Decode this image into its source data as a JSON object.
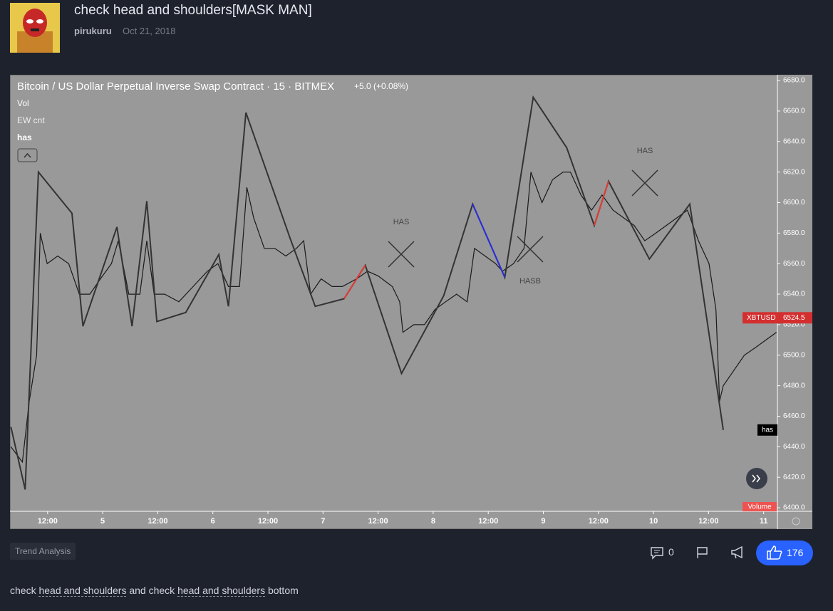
{
  "header": {
    "title": "check head and shoulders[MASK MAN]",
    "author": "pirukuru",
    "date": "Oct 21, 2018"
  },
  "chart_data": {
    "type": "line",
    "title": "Bitcoin / US Dollar Perpetual Inverse Swap Contract · 15 · BITMEX",
    "change": "+5.0 (+0.08%)",
    "indicators": [
      "Vol",
      "EW cnt",
      "has"
    ],
    "xlim": [
      3.8,
      171
    ],
    "ylim": [
      6397.7,
      6683.3
    ],
    "xticks": [
      {
        "value": 12,
        "label": "12:00"
      },
      {
        "value": 24,
        "label": "5"
      },
      {
        "value": 36,
        "label": "12:00"
      },
      {
        "value": 48,
        "label": "6"
      },
      {
        "value": 60,
        "label": "12:00"
      },
      {
        "value": 72,
        "label": "7"
      },
      {
        "value": 84,
        "label": "12:00"
      },
      {
        "value": 96,
        "label": "8"
      },
      {
        "value": 108,
        "label": "12:00"
      },
      {
        "value": 120,
        "label": "9"
      },
      {
        "value": 132,
        "label": "12:00"
      },
      {
        "value": 144,
        "label": "10"
      },
      {
        "value": 156,
        "label": "12:00"
      },
      {
        "value": 168,
        "label": "11"
      }
    ],
    "yticks": [
      {
        "value": 6400,
        "label": "6400.0"
      },
      {
        "value": 6420,
        "label": "6420.0"
      },
      {
        "value": 6440,
        "label": "6440.0"
      },
      {
        "value": 6460,
        "label": "6460.0"
      },
      {
        "value": 6480,
        "label": "6480.0"
      },
      {
        "value": 6500,
        "label": "6500.0"
      },
      {
        "value": 6520,
        "label": "6520.0"
      },
      {
        "value": 6540,
        "label": "6540.0"
      },
      {
        "value": 6560,
        "label": "6560.0"
      },
      {
        "value": 6580,
        "label": "6580.0"
      },
      {
        "value": 6600,
        "label": "6600.0"
      },
      {
        "value": 6620,
        "label": "6620.0"
      },
      {
        "value": 6640,
        "label": "6640.0"
      },
      {
        "value": 6660,
        "label": "6660.0"
      },
      {
        "value": 6680,
        "label": "6680.0"
      }
    ],
    "series": [
      {
        "name": "XBTUSD",
        "color": "#1a1a1a",
        "x": [
          4.0,
          6.5,
          8.0,
          9.6,
          10.4,
          11.9,
          14.2,
          16.6,
          18.9,
          21.2,
          23.5,
          25.9,
          27.4,
          29.7,
          32.1,
          33.6,
          35.2,
          37.5,
          40.6,
          43.7,
          46.8,
          49.1,
          51.4,
          53.8,
          55.4,
          56.9,
          59.2,
          61.5,
          63.9,
          66.2,
          67.8,
          69.3,
          71.6,
          74.0,
          76.2,
          79.3,
          81.7,
          84.0,
          87.1,
          88.7,
          89.4,
          91.8,
          94.1,
          96.4,
          98.7,
          101.1,
          103.4,
          105.0,
          107.3,
          109.6,
          111.1,
          113.5,
          115.8,
          117.3,
          119.7,
          122.0,
          124.3,
          125.9,
          128.2,
          130.5,
          132.8,
          135.2,
          137.5,
          139.8,
          142.1,
          144.5,
          146.8,
          149.1,
          151.4,
          153.8,
          156.1,
          157.6,
          158.4,
          159.2,
          161.5,
          163.8,
          166.2,
          168.5,
          170.8
        ],
        "values": [
          6440,
          6430,
          6470,
          6500,
          6580,
          6560,
          6565,
          6560,
          6540,
          6540,
          6550,
          6560,
          6575,
          6540,
          6540,
          6575,
          6540,
          6540,
          6535,
          6545,
          6555,
          6560,
          6545,
          6545,
          6610,
          6590,
          6570,
          6570,
          6565,
          6570,
          6575,
          6540,
          6550,
          6545,
          6545,
          6550,
          6555,
          6552,
          6545,
          6535,
          6515,
          6520,
          6520,
          6530,
          6535,
          6540,
          6535,
          6570,
          6565,
          6560,
          6555,
          6560,
          6570,
          6620,
          6600,
          6615,
          6620,
          6620,
          6605,
          6595,
          6605,
          6595,
          6590,
          6585,
          6575,
          6580,
          6585,
          6590,
          6595,
          6575,
          6560,
          6530,
          6470,
          6480,
          6490,
          6500,
          6505,
          6510,
          6515
        ]
      },
      {
        "color": "#333333",
        "x": [
          4.0,
          7.1,
          10.0,
          17.3,
          19.7,
          27.1,
          30.4,
          33.6,
          35.8,
          42.1,
          49.3,
          51.4,
          55.2,
          64.9,
          70.3,
          76.6,
          81.2,
          89.1,
          98.3,
          104.6,
          111.6,
          117.8,
          125.1,
          131.1,
          134.2,
          143.1,
          151.9,
          159.2
        ],
        "values": [
          6453,
          6412,
          6620,
          6593,
          6519,
          6584,
          6519,
          6601,
          6522,
          6528,
          6566,
          6532,
          6659,
          6576,
          6532,
          6537,
          6559,
          6488,
          6539,
          6599,
          6551,
          6669,
          6636,
          6585,
          6614,
          6563,
          6599,
          6451
        ]
      },
      {
        "color": "#e53935",
        "x": [
          76.6,
          81.2
        ],
        "values": [
          6537,
          6559
        ]
      },
      {
        "color": "#2a2ee0",
        "x": [
          104.6,
          111.6
        ],
        "values": [
          6599,
          6551
        ]
      },
      {
        "color": "#e53935",
        "x": [
          131.1,
          134.2
        ],
        "values": [
          6585,
          6614
        ]
      }
    ],
    "last_price": {
      "label": "XBTUSD",
      "value": 6524.5,
      "color": "#d32f2f"
    },
    "volume_label": "Volume",
    "annotations": [
      "HAS",
      "HASB",
      "HAS"
    ]
  },
  "footer": {
    "tags": [
      "Trend Analysis"
    ],
    "comments": 0,
    "likes": 176,
    "description": [
      {
        "text": "check "
      },
      {
        "text": "head and shoulders",
        "underline": true
      },
      {
        "text": " and check "
      },
      {
        "text": "head and shoulders",
        "underline": true
      },
      {
        "text": " bottom"
      }
    ]
  }
}
